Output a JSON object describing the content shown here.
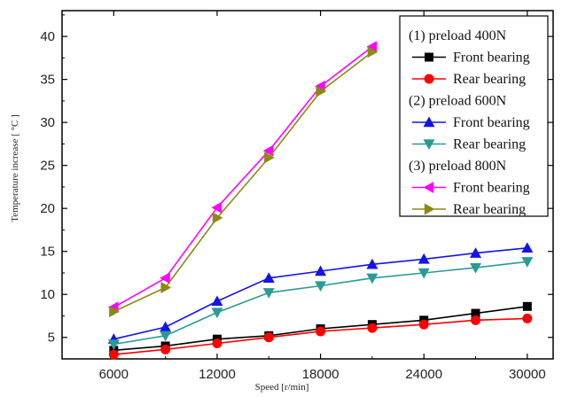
{
  "chart_data": {
    "type": "line",
    "xlabel": "Speed [r/min]",
    "ylabel": "Temperature increase [ °C ]",
    "xlim": [
      3000,
      31500
    ],
    "ylim": [
      2.5,
      43
    ],
    "xticks": [
      6000,
      12000,
      18000,
      24000,
      30000
    ],
    "yticks": [
      5,
      10,
      15,
      20,
      25,
      30,
      35,
      40
    ],
    "grid": false,
    "legend_position": "top-right",
    "legend_groups": [
      "(1) preload 400N",
      "(2) preload 600N",
      "(3) preload 800N"
    ],
    "series": [
      {
        "name": "Front bearing",
        "group": 0,
        "color": "#000000",
        "marker": "square",
        "x": [
          6000,
          9000,
          12000,
          15000,
          18000,
          21000,
          24000,
          27000,
          30000
        ],
        "values": [
          3.5,
          4.0,
          4.8,
          5.2,
          6.0,
          6.5,
          7.0,
          7.8,
          8.6
        ]
      },
      {
        "name": "Rear bearing",
        "group": 0,
        "color": "#ff0000",
        "marker": "circle",
        "x": [
          6000,
          9000,
          12000,
          15000,
          18000,
          21000,
          24000,
          27000,
          30000
        ],
        "values": [
          3.0,
          3.6,
          4.3,
          5.0,
          5.7,
          6.1,
          6.5,
          7.0,
          7.2
        ]
      },
      {
        "name": "Front bearing",
        "group": 1,
        "color": "#1414e6",
        "marker": "triangle-up",
        "x": [
          6000,
          9000,
          12000,
          15000,
          18000,
          21000,
          24000,
          27000,
          30000
        ],
        "values": [
          4.8,
          6.2,
          9.2,
          11.9,
          12.7,
          13.5,
          14.1,
          14.8,
          15.4
        ]
      },
      {
        "name": "Rear bearing",
        "group": 1,
        "color": "#2a9a96",
        "marker": "triangle-down",
        "x": [
          6000,
          9000,
          12000,
          15000,
          18000,
          21000,
          24000,
          27000,
          30000
        ],
        "values": [
          4.2,
          5.2,
          7.9,
          10.2,
          11.0,
          11.9,
          12.5,
          13.1,
          13.8
        ]
      },
      {
        "name": "Front bearing",
        "group": 2,
        "color": "#ff00ff",
        "marker": "triangle-left",
        "x": [
          6000,
          9000,
          12000,
          15000,
          18000,
          21000
        ],
        "values": [
          8.5,
          11.9,
          20.1,
          26.7,
          34.2,
          38.8
        ]
      },
      {
        "name": "Rear bearing",
        "group": 2,
        "color": "#8a8a14",
        "marker": "triangle-right",
        "x": [
          6000,
          9000,
          12000,
          15000,
          18000,
          21000
        ],
        "values": [
          8.0,
          10.8,
          18.9,
          25.9,
          33.6,
          38.2
        ]
      }
    ]
  }
}
